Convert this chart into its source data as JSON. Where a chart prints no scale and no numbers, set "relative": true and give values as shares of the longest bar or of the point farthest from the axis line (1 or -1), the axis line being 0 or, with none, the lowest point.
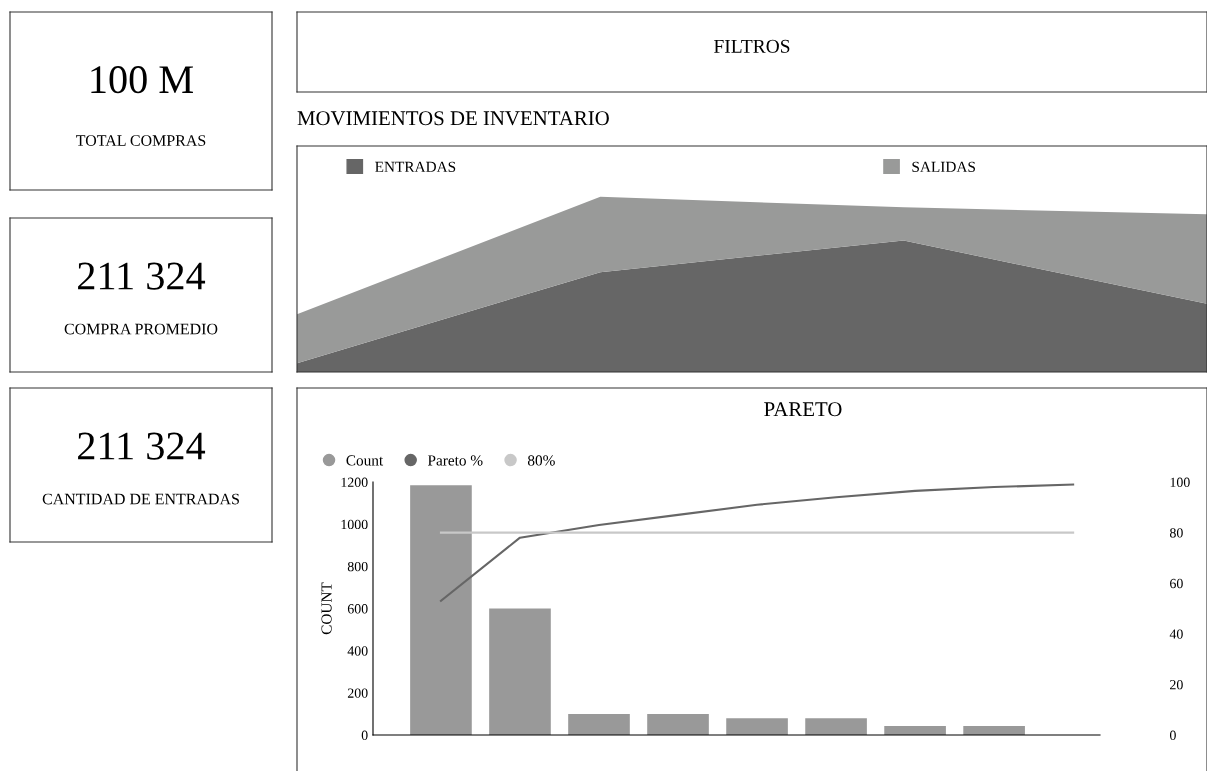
{
  "chart_data": [
    {
      "type": "other",
      "annotations": [
        "100 M",
        "TOTAL COMPRAS"
      ]
    },
    {
      "type": "other",
      "annotations": [
        "211 324",
        "COMPRA PROMEDIO"
      ]
    },
    {
      "type": "other",
      "annotations": [
        "211 324",
        "CANTIDAD DE ENTRADAS"
      ]
    },
    {
      "type": "other",
      "annotations": [
        "FILTROS"
      ]
    },
    {
      "type": "area",
      "title": "MOVIMIENTOS DE INVENTARIO",
      "relative": true,
      "categories": [
        null,
        null,
        null,
        null
      ],
      "legend": "top",
      "stacked": true,
      "series": [
        {
          "name": "ENTRADAS",
          "color": "#666666",
          "values": [
            0.05,
            0.57,
            0.75,
            0.39
          ]
        },
        {
          "name": "SALIDAS",
          "color": "#999a99",
          "values": [
            0.28,
            0.43,
            0.19,
            0.51
          ]
        }
      ]
    },
    {
      "type": "bar",
      "title": "PARETO",
      "ylabel": "COUNT",
      "categories": [
        null,
        null,
        null,
        null,
        null,
        null,
        null,
        null,
        null
      ],
      "legend": "top left",
      "grid": false,
      "ylim": [
        0,
        1200
      ],
      "yticks": [
        0,
        200,
        400,
        600,
        800,
        1000,
        1200
      ],
      "y2lim": [
        0,
        100
      ],
      "y2ticks": [
        0,
        20,
        40,
        60,
        80,
        100
      ],
      "series": [
        {
          "name": "Count",
          "color": "#999999",
          "values": [
            1185,
            600,
            100,
            100,
            80,
            80,
            43,
            43,
            0
          ]
        },
        {
          "name": "Pareto %",
          "type": "line",
          "axis": "y2",
          "color": "#666666",
          "values": [
            53,
            78,
            83,
            87,
            91,
            94,
            96.5,
            98,
            99
          ]
        },
        {
          "name": "80%",
          "type": "line",
          "axis": "y2",
          "color": "#c8c8c8",
          "values": [
            80,
            80,
            80,
            80,
            80,
            80,
            80,
            80,
            80
          ]
        }
      ]
    }
  ]
}
